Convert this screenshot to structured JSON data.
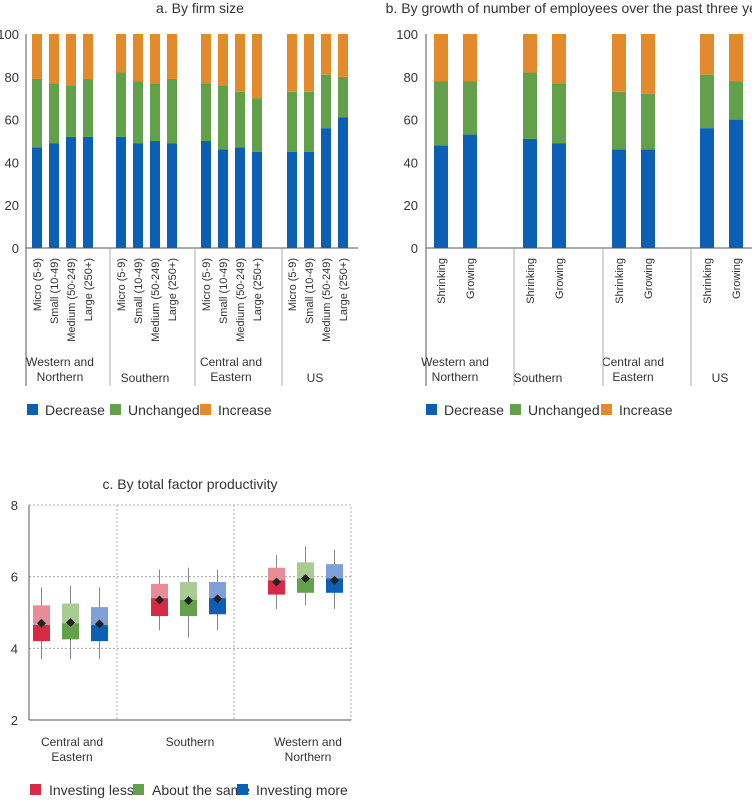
{
  "chart_data": [
    {
      "type": "bar",
      "stacked": true,
      "title": "a. By firm size",
      "ylim": [
        0,
        100
      ],
      "yticks": [
        0,
        20,
        40,
        60,
        80,
        100
      ],
      "groups": [
        {
          "name": "Western and\nNorthern",
          "categories": [
            "Micro (5-9)",
            "Small (10-49)",
            "Medium (50-249)",
            "Large (250+)"
          ],
          "values": {
            "Decrease": [
              47,
              49,
              52,
              52
            ],
            "Unchanged": [
              32,
              28,
              24,
              27
            ],
            "Increase": [
              21,
              23,
              24,
              21
            ]
          }
        },
        {
          "name": "Southern",
          "categories": [
            "Micro (5-9)",
            "Small (10-49)",
            "Medium (50-249)",
            "Large (250+)"
          ],
          "values": {
            "Decrease": [
              52,
              49,
              50,
              49
            ],
            "Unchanged": [
              30,
              29,
              27,
              30
            ],
            "Increase": [
              18,
              22,
              23,
              21
            ]
          }
        },
        {
          "name": "Central and\nEastern",
          "categories": [
            "Micro (5-9)",
            "Small (10-49)",
            "Medium (50-249)",
            "Large (250+)"
          ],
          "values": {
            "Decrease": [
              50,
              46,
              47,
              45
            ],
            "Unchanged": [
              27,
              30,
              26,
              25
            ],
            "Increase": [
              23,
              24,
              27,
              30
            ]
          }
        },
        {
          "name": "US",
          "categories": [
            "Micro (5-9)",
            "Small (10-49)",
            "Medium (50-249)",
            "Large (250+)"
          ],
          "values": {
            "Decrease": [
              45,
              45,
              56,
              61
            ],
            "Unchanged": [
              28,
              28,
              25,
              19
            ],
            "Increase": [
              27,
              27,
              19,
              20
            ]
          }
        }
      ],
      "series": [
        "Decrease",
        "Unchanged",
        "Increase"
      ],
      "legend": [
        "Decrease",
        "Unchanged",
        "Increase"
      ]
    },
    {
      "type": "bar",
      "stacked": true,
      "title": "b. By growth of number of employees over the past three years",
      "ylim": [
        0,
        100
      ],
      "yticks": [
        0,
        20,
        40,
        60,
        80,
        100
      ],
      "groups": [
        {
          "name": "Western and\nNorthern",
          "categories": [
            "Shrinking",
            "Growing"
          ],
          "values": {
            "Decrease": [
              48,
              53
            ],
            "Unchanged": [
              30,
              25
            ],
            "Increase": [
              22,
              22
            ]
          }
        },
        {
          "name": "Southern",
          "categories": [
            "Shrinking",
            "Growing"
          ],
          "values": {
            "Decrease": [
              51,
              49
            ],
            "Unchanged": [
              31,
              28
            ],
            "Increase": [
              18,
              23
            ]
          }
        },
        {
          "name": "Central and\nEastern",
          "categories": [
            "Shrinking",
            "Growing"
          ],
          "values": {
            "Decrease": [
              46,
              46
            ],
            "Unchanged": [
              27,
              26
            ],
            "Increase": [
              27,
              28
            ]
          }
        },
        {
          "name": "US",
          "categories": [
            "Shrinking",
            "Growing"
          ],
          "values": {
            "Decrease": [
              56,
              60
            ],
            "Unchanged": [
              25,
              18
            ],
            "Increase": [
              19,
              22
            ]
          }
        }
      ],
      "series": [
        "Decrease",
        "Unchanged",
        "Increase"
      ],
      "legend": [
        "Decrease",
        "Unchanged",
        "Increase"
      ]
    },
    {
      "type": "boxplot",
      "title": "c. By total factor productivity",
      "ylim": [
        2,
        8
      ],
      "yticks": [
        2,
        4,
        6,
        8
      ],
      "groups": [
        {
          "name": "Central and\nEastern",
          "series": [
            {
              "name": "Investing less",
              "whisker_low": 3.7,
              "q1": 4.2,
              "median": 4.65,
              "q3": 5.2,
              "whisker_high": 5.7,
              "mean": 4.7
            },
            {
              "name": "About the same",
              "whisker_low": 3.7,
              "q1": 4.25,
              "median": 4.7,
              "q3": 5.25,
              "whisker_high": 5.75,
              "mean": 4.72
            },
            {
              "name": "Investing more",
              "whisker_low": 3.7,
              "q1": 4.2,
              "median": 4.65,
              "q3": 5.15,
              "whisker_high": 5.7,
              "mean": 4.68
            }
          ]
        },
        {
          "name": "Southern",
          "series": [
            {
              "name": "Investing less",
              "whisker_low": 4.5,
              "q1": 4.9,
              "median": 5.4,
              "q3": 5.8,
              "whisker_high": 6.2,
              "mean": 5.35
            },
            {
              "name": "About the same",
              "whisker_low": 4.3,
              "q1": 4.9,
              "median": 5.35,
              "q3": 5.85,
              "whisker_high": 6.25,
              "mean": 5.33
            },
            {
              "name": "Investing more",
              "whisker_low": 4.5,
              "q1": 4.95,
              "median": 5.4,
              "q3": 5.85,
              "whisker_high": 6.2,
              "mean": 5.38
            }
          ]
        },
        {
          "name": "Western and\nNorthern",
          "series": [
            {
              "name": "Investing less",
              "whisker_low": 5.1,
              "q1": 5.5,
              "median": 5.9,
              "q3": 6.25,
              "whisker_high": 6.6,
              "mean": 5.85
            },
            {
              "name": "About the same",
              "whisker_low": 5.2,
              "q1": 5.55,
              "median": 5.95,
              "q3": 6.4,
              "whisker_high": 6.85,
              "mean": 5.95
            },
            {
              "name": "Investing more",
              "whisker_low": 5.1,
              "q1": 5.55,
              "median": 5.95,
              "q3": 6.35,
              "whisker_high": 6.75,
              "mean": 5.9
            }
          ]
        }
      ],
      "legend": [
        "Investing less",
        "About the same",
        "Investing more"
      ]
    }
  ],
  "colors": {
    "Decrease": "#0b5fb5",
    "Unchanged": "#63a04a",
    "Increase": "#e38b2c",
    "Investing less": "#d62a45",
    "About the same": "#63a04a",
    "Investing more": "#0b5fb5",
    "Investing less light": "#e68d98",
    "About the same light": "#a9cc94",
    "Investing more light": "#7f9fd6",
    "mean": "#222222",
    "axis": "#555555",
    "grid": "#999999"
  }
}
